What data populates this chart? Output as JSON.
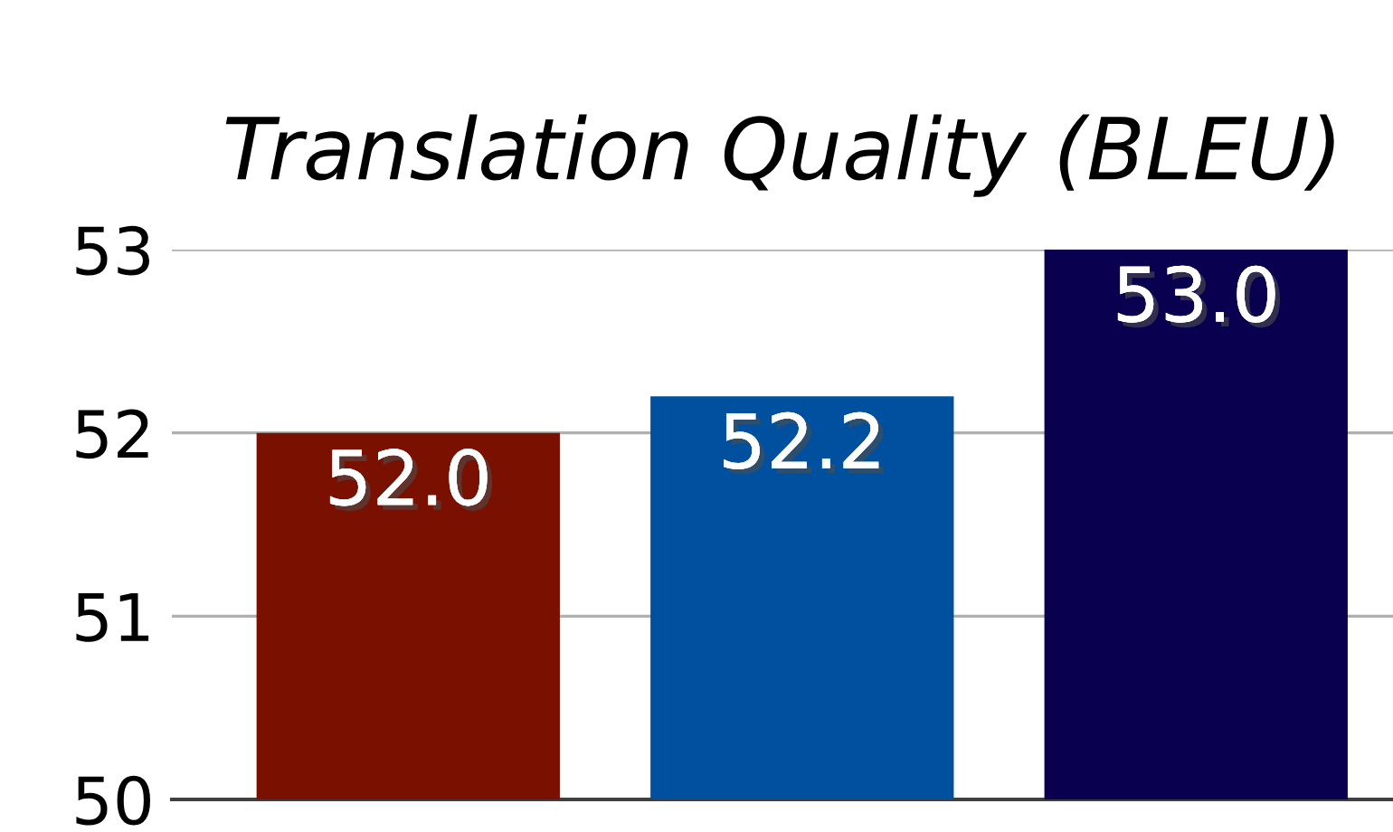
{
  "chart_data": {
    "type": "bar",
    "title": "Translation Quality (BLEU)",
    "categories": [
      null,
      null,
      null
    ],
    "values": [
      52.0,
      52.2,
      53.0
    ],
    "colors": [
      "#7a1000",
      "#0050a0",
      "#0a0050"
    ],
    "ylim": [
      50,
      53
    ],
    "yticks": [
      50,
      51,
      52,
      53
    ],
    "grid": "y",
    "value_labels": [
      "52.0",
      "52.2",
      "53.0"
    ]
  }
}
